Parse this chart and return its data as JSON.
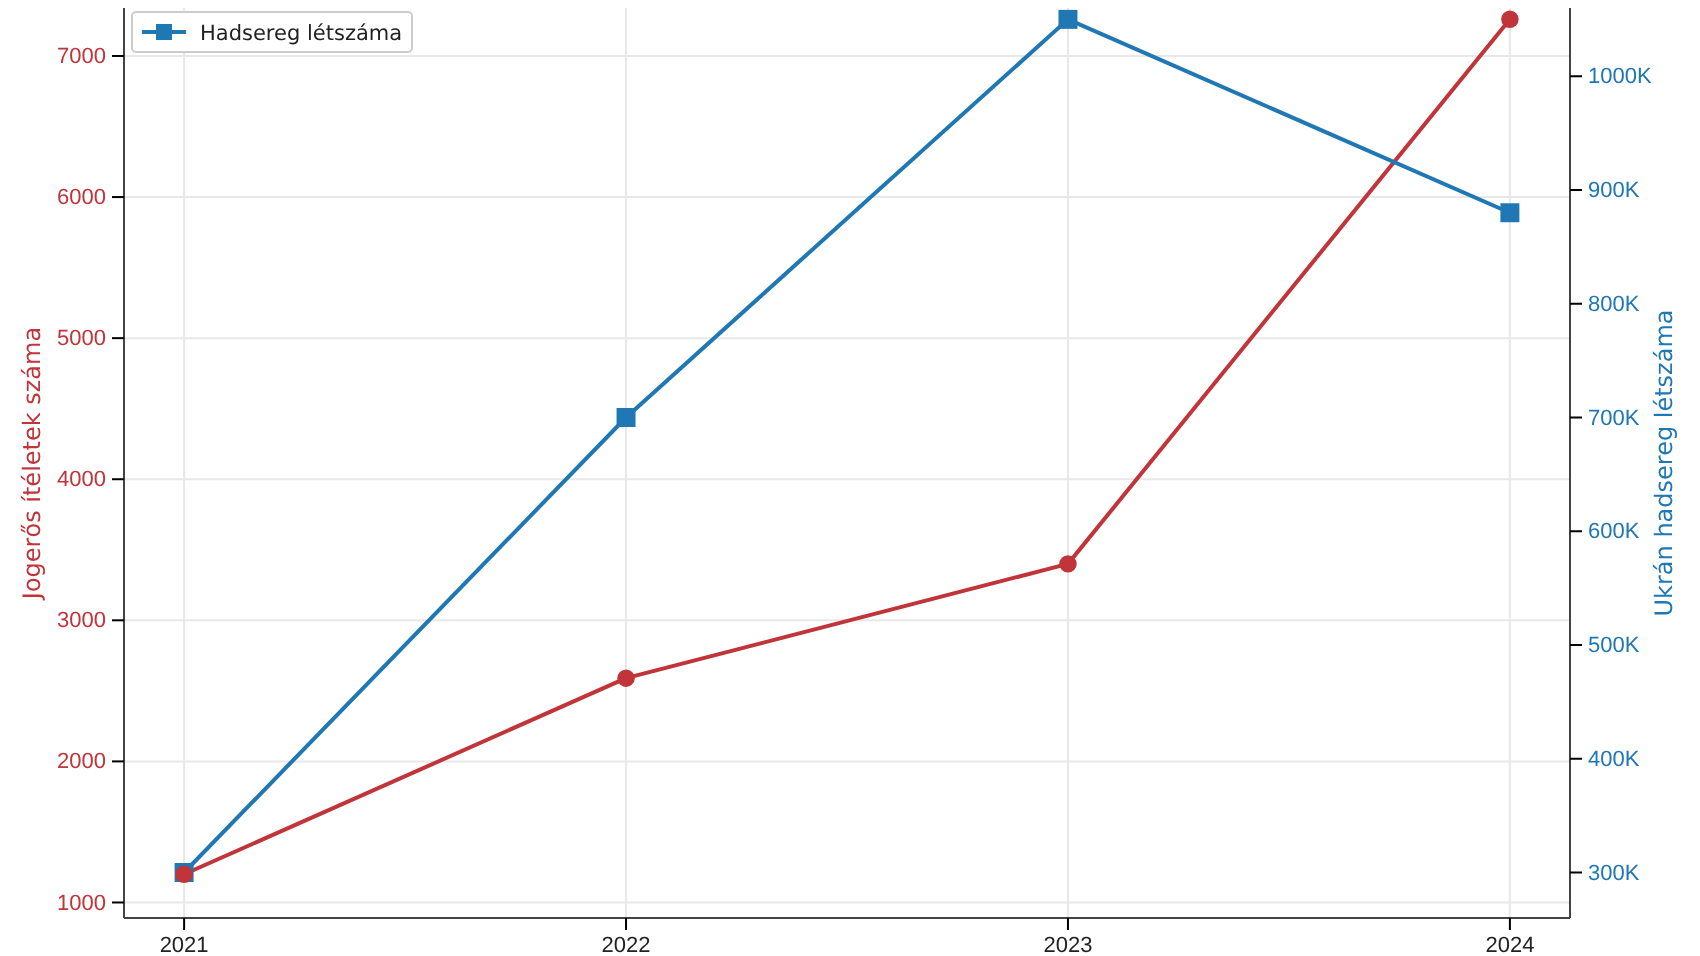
{
  "chart_data": {
    "type": "line",
    "categories": [
      "2021",
      "2022",
      "2023",
      "2024"
    ],
    "series": [
      {
        "color": "#c1343a",
        "values": [
          1200,
          2590,
          3400,
          7260
        ],
        "marker": "circle"
      },
      {
        "name": "Hadsereg létszáma",
        "color": "#1f77b4",
        "values": [
          300000,
          700000,
          1050000,
          880000
        ],
        "axis": "y2",
        "marker": "square"
      }
    ],
    "ylabel": "Jogerős ítéletek száma",
    "y2label": "Ukrán hadsereg létszáma",
    "ylim": [
      890,
      7340
    ],
    "yticks": [
      1000,
      2000,
      3000,
      4000,
      5000,
      6000,
      7000
    ],
    "y2lim": [
      260000,
      1060000
    ],
    "y2ticks": [
      {
        "value": 300000,
        "label": "300K"
      },
      {
        "value": 400000,
        "label": "400K"
      },
      {
        "value": 500000,
        "label": "500K"
      },
      {
        "value": 600000,
        "label": "600K"
      },
      {
        "value": 700000,
        "label": "700K"
      },
      {
        "value": 800000,
        "label": "800K"
      },
      {
        "value": 900000,
        "label": "900K"
      },
      {
        "value": 1000000,
        "label": "1000K"
      }
    ],
    "grid": true,
    "legend": "top left",
    "line_style": "solid"
  }
}
